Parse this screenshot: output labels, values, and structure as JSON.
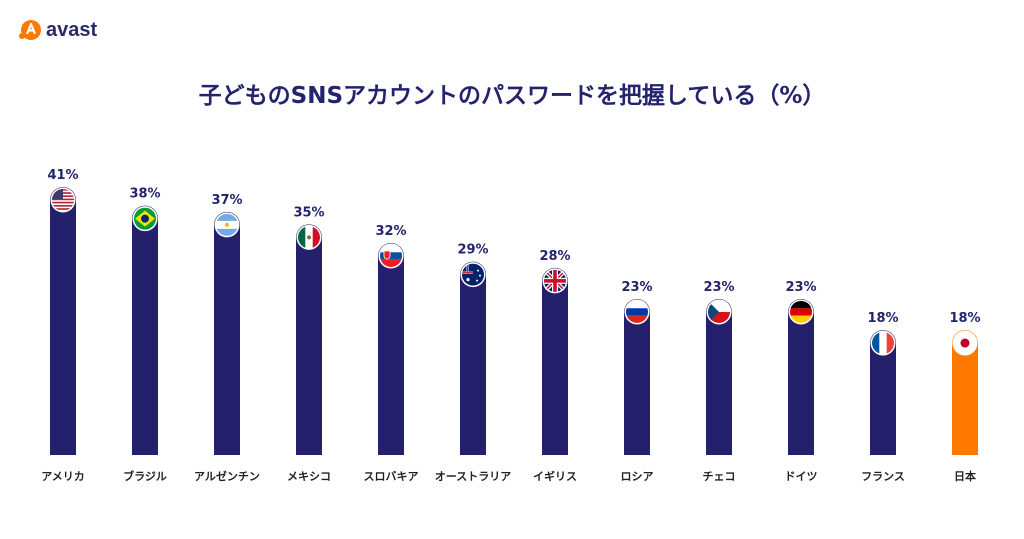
{
  "brand": {
    "name": "avast",
    "color": "#ff7800"
  },
  "colors": {
    "bar": "#25206b",
    "highlight": "#ff7800",
    "title": "#24246e"
  },
  "chart_data": {
    "type": "bar",
    "title": "子どものSNSアカウントのパスワードを把握している（%）",
    "xlabel": "",
    "ylabel": "",
    "ylim": [
      0,
      45
    ],
    "grid": false,
    "legend": "none",
    "categories": [
      "アメリカ",
      "ブラジル",
      "アルゼンチン",
      "メキシコ",
      "スロバキア",
      "オーストラリア",
      "イギリス",
      "ロシア",
      "チェコ",
      "ドイツ",
      "フランス",
      "日本"
    ],
    "values": [
      41,
      38,
      37,
      35,
      32,
      29,
      28,
      23,
      23,
      23,
      18,
      18
    ],
    "value_labels": [
      "41%",
      "38%",
      "37%",
      "35%",
      "32%",
      "29%",
      "28%",
      "23%",
      "23%",
      "23%",
      "18%",
      "18%"
    ],
    "flag_icons": [
      "us-flag-icon",
      "brazil-flag-icon",
      "argentina-flag-icon",
      "mexico-flag-icon",
      "slovakia-flag-icon",
      "australia-flag-icon",
      "uk-flag-icon",
      "russia-flag-icon",
      "czech-flag-icon",
      "germany-flag-icon",
      "france-flag-icon",
      "japan-flag-icon"
    ],
    "highlight_index": 11
  }
}
